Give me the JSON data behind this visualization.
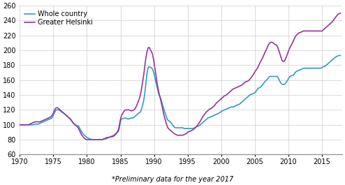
{
  "footnote": "*Preliminary data for the year 2017",
  "xlim": [
    1970,
    2018
  ],
  "ylim": [
    60,
    260
  ],
  "yticks": [
    60,
    80,
    100,
    120,
    140,
    160,
    180,
    200,
    220,
    240,
    260
  ],
  "xticks": [
    1970,
    1975,
    1980,
    1985,
    1990,
    1995,
    2000,
    2005,
    2010,
    2015
  ],
  "legend_labels": [
    "Whole country",
    "Greater Helsinki"
  ],
  "wc_color": "#3399CC",
  "gh_color": "#993399",
  "line_width": 1.2,
  "whole_country": [
    [
      1970.0,
      100
    ],
    [
      1970.25,
      100
    ],
    [
      1970.5,
      100
    ],
    [
      1970.75,
      100
    ],
    [
      1971.0,
      100
    ],
    [
      1971.25,
      100
    ],
    [
      1971.5,
      100
    ],
    [
      1971.75,
      100
    ],
    [
      1972.0,
      100
    ],
    [
      1972.25,
      101
    ],
    [
      1972.5,
      101
    ],
    [
      1972.75,
      101
    ],
    [
      1973.0,
      102
    ],
    [
      1973.25,
      103
    ],
    [
      1973.5,
      104
    ],
    [
      1973.75,
      105
    ],
    [
      1974.0,
      106
    ],
    [
      1974.25,
      107
    ],
    [
      1974.5,
      108
    ],
    [
      1974.75,
      109
    ],
    [
      1975.0,
      113
    ],
    [
      1975.25,
      118
    ],
    [
      1975.5,
      120
    ],
    [
      1975.75,
      120
    ],
    [
      1976.0,
      119
    ],
    [
      1976.25,
      117
    ],
    [
      1976.5,
      116
    ],
    [
      1976.75,
      114
    ],
    [
      1977.0,
      112
    ],
    [
      1977.25,
      110
    ],
    [
      1977.5,
      108
    ],
    [
      1977.75,
      105
    ],
    [
      1978.0,
      102
    ],
    [
      1978.25,
      100
    ],
    [
      1978.5,
      99
    ],
    [
      1978.75,
      98
    ],
    [
      1979.0,
      94
    ],
    [
      1979.25,
      90
    ],
    [
      1979.5,
      87
    ],
    [
      1979.75,
      85
    ],
    [
      1980.0,
      83
    ],
    [
      1980.25,
      82
    ],
    [
      1980.5,
      81
    ],
    [
      1980.75,
      80
    ],
    [
      1981.0,
      80
    ],
    [
      1981.25,
      80
    ],
    [
      1981.5,
      80
    ],
    [
      1981.75,
      80
    ],
    [
      1982.0,
      80
    ],
    [
      1982.25,
      80
    ],
    [
      1982.5,
      81
    ],
    [
      1982.75,
      81
    ],
    [
      1983.0,
      82
    ],
    [
      1983.25,
      83
    ],
    [
      1983.5,
      84
    ],
    [
      1983.75,
      85
    ],
    [
      1984.0,
      86
    ],
    [
      1984.25,
      88
    ],
    [
      1984.5,
      90
    ],
    [
      1984.75,
      93
    ],
    [
      1985.0,
      105
    ],
    [
      1985.25,
      108
    ],
    [
      1985.5,
      109
    ],
    [
      1985.75,
      109
    ],
    [
      1986.0,
      108
    ],
    [
      1986.25,
      108
    ],
    [
      1986.5,
      109
    ],
    [
      1986.75,
      109
    ],
    [
      1987.0,
      110
    ],
    [
      1987.25,
      112
    ],
    [
      1987.5,
      114
    ],
    [
      1987.75,
      116
    ],
    [
      1988.0,
      118
    ],
    [
      1988.25,
      125
    ],
    [
      1988.5,
      135
    ],
    [
      1988.75,
      153
    ],
    [
      1989.0,
      172
    ],
    [
      1989.25,
      178
    ],
    [
      1989.5,
      177
    ],
    [
      1989.75,
      175
    ],
    [
      1990.0,
      168
    ],
    [
      1990.25,
      158
    ],
    [
      1990.5,
      148
    ],
    [
      1990.75,
      140
    ],
    [
      1991.0,
      135
    ],
    [
      1991.25,
      127
    ],
    [
      1991.5,
      120
    ],
    [
      1991.75,
      113
    ],
    [
      1992.0,
      107
    ],
    [
      1992.25,
      105
    ],
    [
      1992.5,
      103
    ],
    [
      1992.75,
      100
    ],
    [
      1993.0,
      97
    ],
    [
      1993.25,
      96
    ],
    [
      1993.5,
      96
    ],
    [
      1993.75,
      96
    ],
    [
      1994.0,
      96
    ],
    [
      1994.25,
      96
    ],
    [
      1994.5,
      95
    ],
    [
      1994.75,
      95
    ],
    [
      1995.0,
      95
    ],
    [
      1995.25,
      95
    ],
    [
      1995.5,
      95
    ],
    [
      1995.75,
      95
    ],
    [
      1996.0,
      96
    ],
    [
      1996.25,
      97
    ],
    [
      1996.5,
      98
    ],
    [
      1996.75,
      99
    ],
    [
      1997.0,
      101
    ],
    [
      1997.25,
      103
    ],
    [
      1997.5,
      105
    ],
    [
      1997.75,
      107
    ],
    [
      1998.0,
      109
    ],
    [
      1998.25,
      110
    ],
    [
      1998.5,
      111
    ],
    [
      1998.75,
      112
    ],
    [
      1999.0,
      113
    ],
    [
      1999.25,
      114
    ],
    [
      1999.5,
      115
    ],
    [
      1999.75,
      116
    ],
    [
      2000.0,
      118
    ],
    [
      2000.25,
      119
    ],
    [
      2000.5,
      120
    ],
    [
      2000.75,
      121
    ],
    [
      2001.0,
      122
    ],
    [
      2001.25,
      123
    ],
    [
      2001.5,
      124
    ],
    [
      2001.75,
      124
    ],
    [
      2002.0,
      125
    ],
    [
      2002.25,
      126
    ],
    [
      2002.5,
      127
    ],
    [
      2002.75,
      128
    ],
    [
      2003.0,
      130
    ],
    [
      2003.25,
      132
    ],
    [
      2003.5,
      134
    ],
    [
      2003.75,
      136
    ],
    [
      2004.0,
      138
    ],
    [
      2004.25,
      140
    ],
    [
      2004.5,
      141
    ],
    [
      2004.75,
      142
    ],
    [
      2005.0,
      143
    ],
    [
      2005.25,
      146
    ],
    [
      2005.5,
      149
    ],
    [
      2005.75,
      150
    ],
    [
      2006.0,
      152
    ],
    [
      2006.25,
      155
    ],
    [
      2006.5,
      158
    ],
    [
      2006.75,
      160
    ],
    [
      2007.0,
      163
    ],
    [
      2007.25,
      165
    ],
    [
      2007.5,
      165
    ],
    [
      2007.75,
      165
    ],
    [
      2008.0,
      165
    ],
    [
      2008.25,
      165
    ],
    [
      2008.5,
      163
    ],
    [
      2008.75,
      158
    ],
    [
      2009.0,
      155
    ],
    [
      2009.25,
      154
    ],
    [
      2009.5,
      155
    ],
    [
      2009.75,
      158
    ],
    [
      2010.0,
      162
    ],
    [
      2010.25,
      165
    ],
    [
      2010.5,
      166
    ],
    [
      2010.75,
      167
    ],
    [
      2011.0,
      170
    ],
    [
      2011.25,
      172
    ],
    [
      2011.5,
      173
    ],
    [
      2011.75,
      174
    ],
    [
      2012.0,
      175
    ],
    [
      2012.25,
      176
    ],
    [
      2012.5,
      176
    ],
    [
      2012.75,
      176
    ],
    [
      2013.0,
      176
    ],
    [
      2013.25,
      176
    ],
    [
      2013.5,
      176
    ],
    [
      2013.75,
      176
    ],
    [
      2014.0,
      176
    ],
    [
      2014.25,
      176
    ],
    [
      2014.5,
      176
    ],
    [
      2014.75,
      176
    ],
    [
      2015.0,
      177
    ],
    [
      2015.25,
      178
    ],
    [
      2015.5,
      179
    ],
    [
      2015.75,
      181
    ],
    [
      2016.0,
      183
    ],
    [
      2016.25,
      185
    ],
    [
      2016.5,
      187
    ],
    [
      2016.75,
      189
    ],
    [
      2017.0,
      191
    ],
    [
      2017.25,
      192
    ],
    [
      2017.5,
      193
    ],
    [
      2017.75,
      193
    ]
  ],
  "greater_helsinki": [
    [
      1970.0,
      100
    ],
    [
      1970.25,
      100
    ],
    [
      1970.5,
      100
    ],
    [
      1970.75,
      100
    ],
    [
      1971.0,
      100
    ],
    [
      1971.25,
      100
    ],
    [
      1971.5,
      101
    ],
    [
      1971.75,
      102
    ],
    [
      1972.0,
      103
    ],
    [
      1972.25,
      104
    ],
    [
      1972.5,
      104
    ],
    [
      1972.75,
      104
    ],
    [
      1973.0,
      104
    ],
    [
      1973.25,
      105
    ],
    [
      1973.5,
      106
    ],
    [
      1973.75,
      107
    ],
    [
      1974.0,
      108
    ],
    [
      1974.25,
      109
    ],
    [
      1974.5,
      110
    ],
    [
      1974.75,
      112
    ],
    [
      1975.0,
      116
    ],
    [
      1975.25,
      121
    ],
    [
      1975.5,
      123
    ],
    [
      1975.75,
      122
    ],
    [
      1976.0,
      120
    ],
    [
      1976.25,
      118
    ],
    [
      1976.5,
      116
    ],
    [
      1976.75,
      114
    ],
    [
      1977.0,
      112
    ],
    [
      1977.25,
      110
    ],
    [
      1977.5,
      108
    ],
    [
      1977.75,
      105
    ],
    [
      1978.0,
      102
    ],
    [
      1978.25,
      100
    ],
    [
      1978.5,
      98
    ],
    [
      1978.75,
      95
    ],
    [
      1979.0,
      90
    ],
    [
      1979.25,
      86
    ],
    [
      1979.5,
      83
    ],
    [
      1979.75,
      81
    ],
    [
      1980.0,
      80
    ],
    [
      1980.25,
      80
    ],
    [
      1980.5,
      80
    ],
    [
      1980.75,
      80
    ],
    [
      1981.0,
      80
    ],
    [
      1981.25,
      80
    ],
    [
      1981.5,
      80
    ],
    [
      1981.75,
      80
    ],
    [
      1982.0,
      80
    ],
    [
      1982.25,
      80
    ],
    [
      1982.5,
      81
    ],
    [
      1982.75,
      82
    ],
    [
      1983.0,
      83
    ],
    [
      1983.25,
      83
    ],
    [
      1983.5,
      84
    ],
    [
      1983.75,
      84
    ],
    [
      1984.0,
      85
    ],
    [
      1984.25,
      87
    ],
    [
      1984.5,
      90
    ],
    [
      1984.75,
      96
    ],
    [
      1985.0,
      108
    ],
    [
      1985.25,
      114
    ],
    [
      1985.5,
      118
    ],
    [
      1985.75,
      120
    ],
    [
      1986.0,
      120
    ],
    [
      1986.25,
      120
    ],
    [
      1986.5,
      119
    ],
    [
      1986.75,
      119
    ],
    [
      1987.0,
      120
    ],
    [
      1987.25,
      123
    ],
    [
      1987.5,
      128
    ],
    [
      1987.75,
      134
    ],
    [
      1988.0,
      142
    ],
    [
      1988.25,
      155
    ],
    [
      1988.5,
      170
    ],
    [
      1988.75,
      188
    ],
    [
      1989.0,
      200
    ],
    [
      1989.25,
      204
    ],
    [
      1989.5,
      200
    ],
    [
      1989.75,
      195
    ],
    [
      1990.0,
      183
    ],
    [
      1990.25,
      168
    ],
    [
      1990.5,
      153
    ],
    [
      1990.75,
      142
    ],
    [
      1991.0,
      133
    ],
    [
      1991.25,
      122
    ],
    [
      1991.5,
      112
    ],
    [
      1991.75,
      104
    ],
    [
      1992.0,
      97
    ],
    [
      1992.25,
      94
    ],
    [
      1992.5,
      92
    ],
    [
      1992.75,
      90
    ],
    [
      1993.0,
      88
    ],
    [
      1993.25,
      87
    ],
    [
      1993.5,
      86
    ],
    [
      1993.75,
      86
    ],
    [
      1994.0,
      86
    ],
    [
      1994.25,
      86
    ],
    [
      1994.5,
      87
    ],
    [
      1994.75,
      88
    ],
    [
      1995.0,
      90
    ],
    [
      1995.25,
      91
    ],
    [
      1995.5,
      92
    ],
    [
      1995.75,
      93
    ],
    [
      1996.0,
      95
    ],
    [
      1996.25,
      97
    ],
    [
      1996.5,
      100
    ],
    [
      1996.75,
      103
    ],
    [
      1997.0,
      107
    ],
    [
      1997.25,
      111
    ],
    [
      1997.5,
      114
    ],
    [
      1997.75,
      117
    ],
    [
      1998.0,
      119
    ],
    [
      1998.25,
      121
    ],
    [
      1998.5,
      122
    ],
    [
      1998.75,
      124
    ],
    [
      1999.0,
      126
    ],
    [
      1999.25,
      129
    ],
    [
      1999.5,
      131
    ],
    [
      1999.75,
      133
    ],
    [
      2000.0,
      135
    ],
    [
      2000.25,
      137
    ],
    [
      2000.5,
      139
    ],
    [
      2000.75,
      140
    ],
    [
      2001.0,
      142
    ],
    [
      2001.25,
      144
    ],
    [
      2001.5,
      146
    ],
    [
      2001.75,
      148
    ],
    [
      2002.0,
      149
    ],
    [
      2002.25,
      150
    ],
    [
      2002.5,
      151
    ],
    [
      2002.75,
      152
    ],
    [
      2003.0,
      153
    ],
    [
      2003.25,
      155
    ],
    [
      2003.5,
      157
    ],
    [
      2003.75,
      158
    ],
    [
      2004.0,
      159
    ],
    [
      2004.25,
      161
    ],
    [
      2004.5,
      164
    ],
    [
      2004.75,
      167
    ],
    [
      2005.0,
      171
    ],
    [
      2005.25,
      174
    ],
    [
      2005.5,
      178
    ],
    [
      2005.75,
      183
    ],
    [
      2006.0,
      187
    ],
    [
      2006.25,
      192
    ],
    [
      2006.5,
      197
    ],
    [
      2006.75,
      202
    ],
    [
      2007.0,
      207
    ],
    [
      2007.25,
      210
    ],
    [
      2007.5,
      211
    ],
    [
      2007.75,
      210
    ],
    [
      2008.0,
      208
    ],
    [
      2008.25,
      207
    ],
    [
      2008.5,
      202
    ],
    [
      2008.75,
      195
    ],
    [
      2009.0,
      188
    ],
    [
      2009.25,
      185
    ],
    [
      2009.5,
      187
    ],
    [
      2009.75,
      193
    ],
    [
      2010.0,
      199
    ],
    [
      2010.25,
      204
    ],
    [
      2010.5,
      208
    ],
    [
      2010.75,
      213
    ],
    [
      2011.0,
      218
    ],
    [
      2011.25,
      221
    ],
    [
      2011.5,
      223
    ],
    [
      2011.75,
      224
    ],
    [
      2012.0,
      225
    ],
    [
      2012.25,
      226
    ],
    [
      2012.5,
      226
    ],
    [
      2012.75,
      226
    ],
    [
      2013.0,
      226
    ],
    [
      2013.25,
      226
    ],
    [
      2013.5,
      226
    ],
    [
      2013.75,
      226
    ],
    [
      2014.0,
      226
    ],
    [
      2014.25,
      226
    ],
    [
      2014.5,
      226
    ],
    [
      2014.75,
      226
    ],
    [
      2015.0,
      226
    ],
    [
      2015.25,
      228
    ],
    [
      2015.5,
      230
    ],
    [
      2015.75,
      232
    ],
    [
      2016.0,
      234
    ],
    [
      2016.25,
      236
    ],
    [
      2016.5,
      238
    ],
    [
      2016.75,
      241
    ],
    [
      2017.0,
      244
    ],
    [
      2017.25,
      247
    ],
    [
      2017.5,
      249
    ],
    [
      2017.75,
      250
    ]
  ]
}
